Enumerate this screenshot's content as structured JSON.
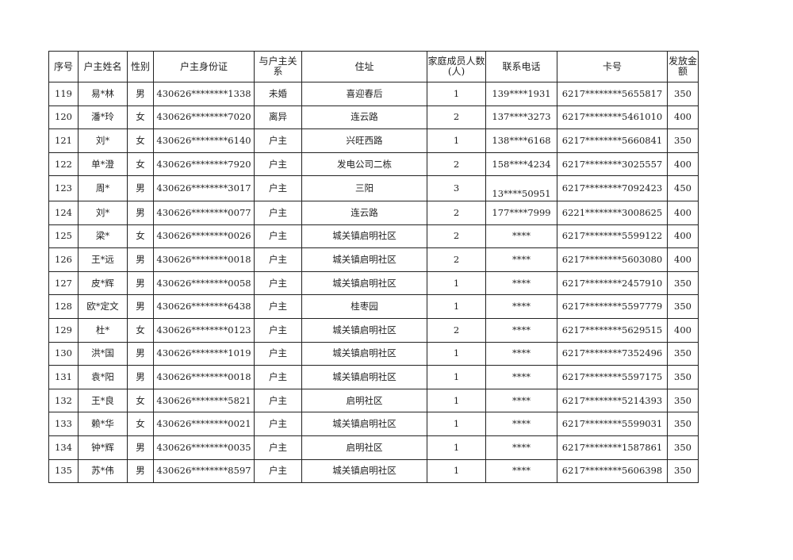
{
  "headers": [
    "序号",
    "户主姓名",
    "性别",
    "户主身份证",
    "与户主关系",
    "住址",
    "家庭成员人数(人)",
    "联系电话",
    "卡号",
    "发放金额"
  ],
  "rows": [
    [
      "119",
      "易*林",
      "男",
      "430626********1338",
      "未婚",
      "喜迎春后",
      "1",
      "139****1931",
      "6217********5655817",
      "350"
    ],
    [
      "120",
      "潘*玲",
      "女",
      "430626********7020",
      "离异",
      "连云路",
      "2",
      "137****3273",
      "6217********5461010",
      "400"
    ],
    [
      "121",
      "刘*",
      "女",
      "430626********6140",
      "户主",
      "兴旺西路",
      "1",
      "138****6168",
      "6217********5660841",
      "350"
    ],
    [
      "122",
      "单*澄",
      "女",
      "430626********7920",
      "户主",
      "发电公司二栋",
      "2",
      "158****4234",
      "6217********3025557",
      "400"
    ],
    [
      "123",
      "周*",
      "男",
      "430626********3017",
      "户主",
      "三阳",
      "3",
      "13****50951",
      "6217********7092423",
      "450"
    ],
    [
      "124",
      "刘*",
      "男",
      "430626********0077",
      "户主",
      "连云路",
      "2",
      "177****7999",
      "6221********3008625",
      "400"
    ],
    [
      "125",
      "梁*",
      "女",
      "430626********0026",
      "户主",
      "城关镇启明社区",
      "2",
      "****",
      "6217********5599122",
      "400"
    ],
    [
      "126",
      "王*远",
      "男",
      "430626********0018",
      "户主",
      "城关镇启明社区",
      "2",
      "****",
      "6217********5603080",
      "400"
    ],
    [
      "127",
      "皮*辉",
      "男",
      "430626********0058",
      "户主",
      "城关镇启明社区",
      "1",
      "****",
      "6217********2457910",
      "350"
    ],
    [
      "128",
      "欧*定文",
      "男",
      "430626********6438",
      "户主",
      "桂枣园",
      "1",
      "****",
      "6217********5597779",
      "350"
    ],
    [
      "129",
      "杜*",
      "女",
      "430626********0123",
      "户主",
      "城关镇启明社区",
      "2",
      "****",
      "6217********5629515",
      "400"
    ],
    [
      "130",
      "洪*国",
      "男",
      "430626********1019",
      "户主",
      "城关镇启明社区",
      "1",
      "****",
      "6217********7352496",
      "350"
    ],
    [
      "131",
      "袁*阳",
      "男",
      "430626********0018",
      "户主",
      "城关镇启明社区",
      "1",
      "****",
      "6217********5597175",
      "350"
    ],
    [
      "132",
      "王*良",
      "女",
      "430626********5821",
      "户主",
      "启明社区",
      "1",
      "****",
      "6217********5214393",
      "350"
    ],
    [
      "133",
      "赖*华",
      "女",
      "430626********0021",
      "户主",
      "城关镇启明社区",
      "1",
      "****",
      "6217********5599031",
      "350"
    ],
    [
      "134",
      "钟*辉",
      "男",
      "430626********0035",
      "户主",
      "启明社区",
      "1",
      "****",
      "6217********1587861",
      "350"
    ],
    [
      "135",
      "苏*伟",
      "男",
      "430626********8597",
      "户主",
      "城关镇启明社区",
      "1",
      "****",
      "6217********5606398",
      "350"
    ]
  ]
}
